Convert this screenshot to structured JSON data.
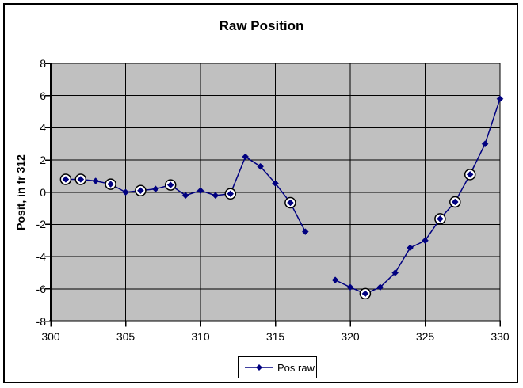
{
  "window": {
    "background": "#FFFFFF",
    "frame_border_color": "#000000"
  },
  "chart_data": {
    "type": "line",
    "title": "Raw Position",
    "xlabel": "",
    "ylabel": "Posit, in fr 312",
    "xlim": [
      300,
      330
    ],
    "ylim": [
      -8,
      8
    ],
    "x_ticks": [
      300,
      305,
      310,
      315,
      320,
      325,
      330
    ],
    "y_ticks": [
      8,
      6,
      4,
      2,
      0,
      -2,
      -4,
      -6,
      -8
    ],
    "grid": true,
    "legend_position": "bottom-center",
    "plot_background": "#C0C0C0",
    "grid_color": "#000000",
    "axis_color": "#000000",
    "circled_marker": {
      "fill": "#FFFFFF",
      "ring": "#000000"
    },
    "series": [
      {
        "name": "Pos raw",
        "color": "#000080",
        "marker": "diamond",
        "points": [
          {
            "x": 301,
            "y": 0.8,
            "circled": true
          },
          {
            "x": 302,
            "y": 0.8,
            "circled": true
          },
          {
            "x": 303,
            "y": 0.7,
            "circled": false
          },
          {
            "x": 304,
            "y": 0.5,
            "circled": true
          },
          {
            "x": 305,
            "y": 0.0,
            "circled": false
          },
          {
            "x": 306,
            "y": 0.1,
            "circled": true
          },
          {
            "x": 307,
            "y": 0.2,
            "circled": false
          },
          {
            "x": 308,
            "y": 0.45,
            "circled": true
          },
          {
            "x": 309,
            "y": -0.2,
            "circled": false
          },
          {
            "x": 310,
            "y": 0.1,
            "circled": false
          },
          {
            "x": 311,
            "y": -0.2,
            "circled": false
          },
          {
            "x": 312,
            "y": -0.1,
            "circled": true
          },
          {
            "x": 313,
            "y": 2.2,
            "circled": false
          },
          {
            "x": 314,
            "y": 1.6,
            "circled": false
          },
          {
            "x": 315,
            "y": 0.55,
            "circled": false
          },
          {
            "x": 316,
            "y": -0.65,
            "circled": true
          },
          {
            "x": 317,
            "y": -2.45,
            "circled": false
          },
          {
            "x": 318,
            "y": null,
            "circled": false
          },
          {
            "x": 319,
            "y": -5.45,
            "circled": false
          },
          {
            "x": 320,
            "y": -5.9,
            "circled": false
          },
          {
            "x": 321,
            "y": -6.3,
            "circled": true
          },
          {
            "x": 322,
            "y": -5.9,
            "circled": false
          },
          {
            "x": 323,
            "y": -5.0,
            "circled": false
          },
          {
            "x": 324,
            "y": -3.45,
            "circled": false
          },
          {
            "x": 325,
            "y": -3.0,
            "circled": false
          },
          {
            "x": 326,
            "y": -1.65,
            "circled": true
          },
          {
            "x": 327,
            "y": -0.6,
            "circled": true
          },
          {
            "x": 328,
            "y": 1.1,
            "circled": true
          },
          {
            "x": 329,
            "y": 3.0,
            "circled": false
          },
          {
            "x": 330,
            "y": 5.8,
            "circled": false
          }
        ]
      }
    ]
  }
}
